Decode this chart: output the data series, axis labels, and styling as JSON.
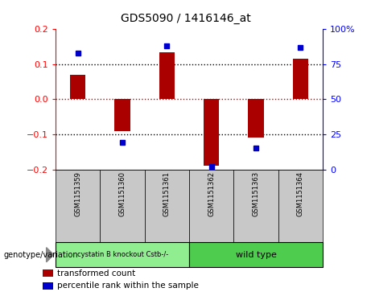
{
  "title": "GDS5090 / 1416146_at",
  "samples": [
    "GSM1151359",
    "GSM1151360",
    "GSM1151361",
    "GSM1151362",
    "GSM1151363",
    "GSM1151364"
  ],
  "bar_values": [
    0.07,
    -0.09,
    0.135,
    -0.19,
    -0.11,
    0.115
  ],
  "percentile_values": [
    83,
    19,
    88,
    2,
    15,
    87
  ],
  "ylim_left": [
    -0.2,
    0.2
  ],
  "ylim_right": [
    0,
    100
  ],
  "bar_color": "#aa0000",
  "dot_color": "#0000cc",
  "yticks_left": [
    -0.2,
    -0.1,
    0.0,
    0.1,
    0.2
  ],
  "yticks_right": [
    0,
    25,
    50,
    75,
    100
  ],
  "ytick_labels_right": [
    "0",
    "25",
    "50",
    "75",
    "100%"
  ],
  "group1_label": "cystatin B knockout Cstb-/-",
  "group2_label": "wild type",
  "group1_color": "#90ee90",
  "group2_color": "#4dcc4d",
  "sample_box_color": "#c8c8c8",
  "genotype_label": "genotype/variation",
  "legend1": "transformed count",
  "legend2": "percentile rank within the sample",
  "group1_indices": [
    0,
    1,
    2
  ],
  "group2_indices": [
    3,
    4,
    5
  ],
  "zero_line_color": "#cc0000",
  "dotted_line_color": "#000000",
  "bg_color": "#ffffff"
}
